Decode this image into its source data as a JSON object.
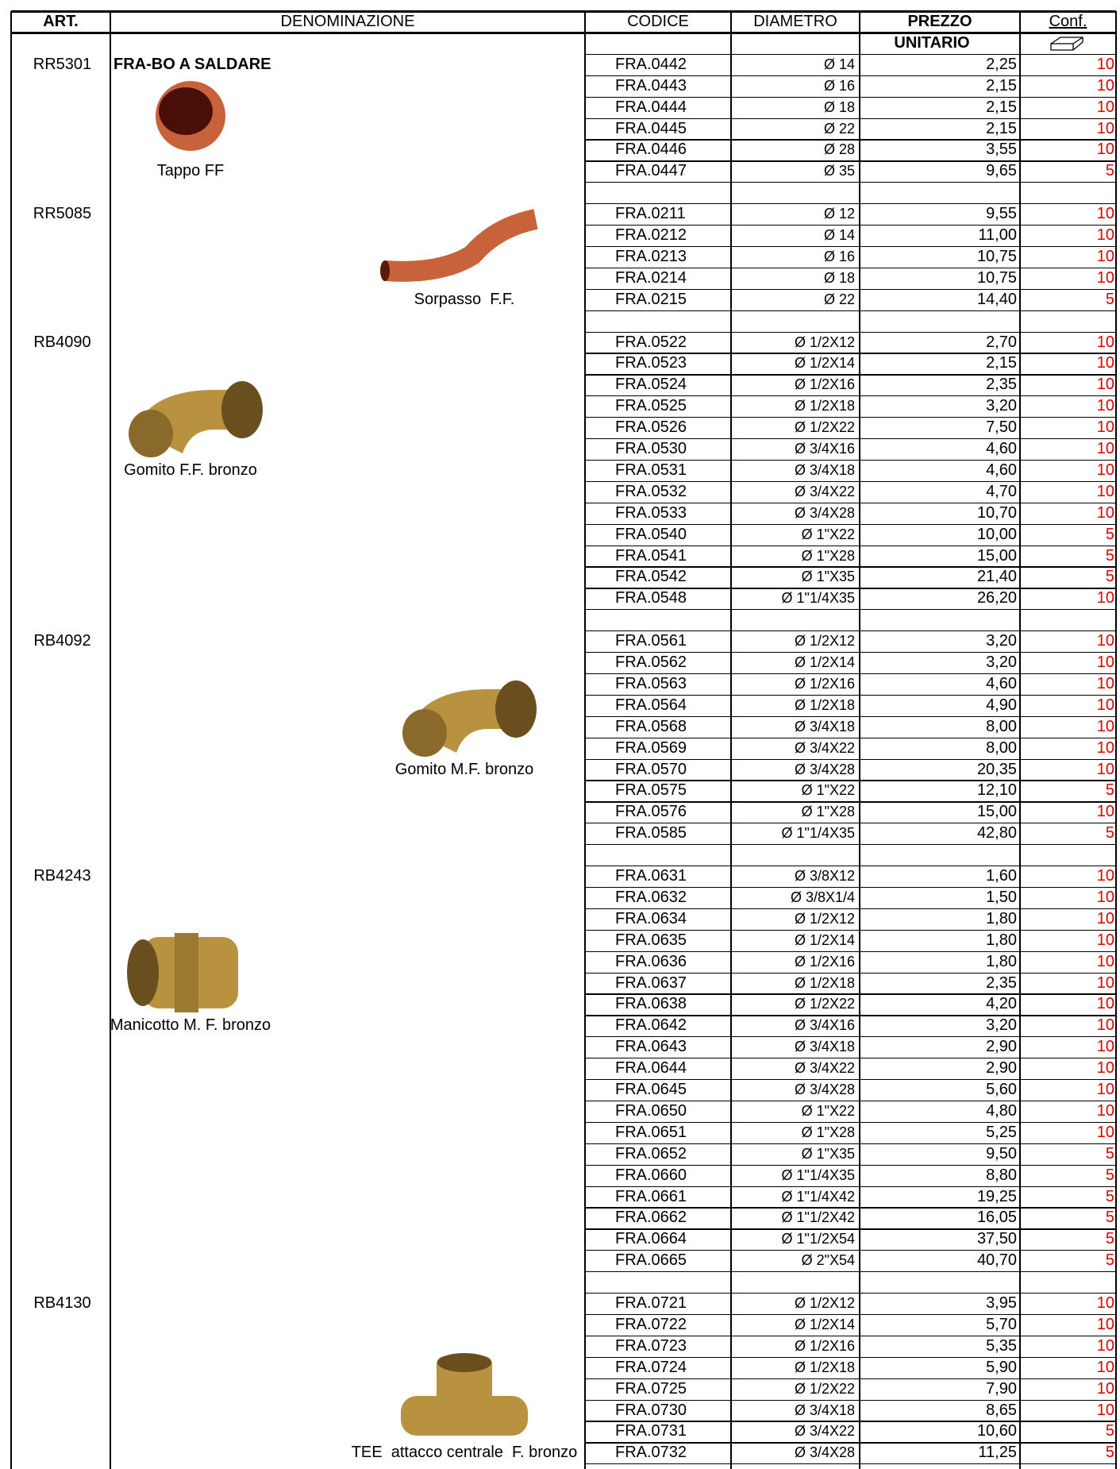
{
  "header": {
    "columns": [
      "ART.",
      "DENOMINAZIONE",
      "CODICE",
      "DIAMETRO",
      "PREZZO",
      "Conf."
    ],
    "subheader": "UNITARIO"
  },
  "groups": [
    {
      "art": "RR5301",
      "title": "FRA-BO A SALDARE",
      "caption": "Tappo FF",
      "rows": [
        [
          "FRA.0442",
          "Ø 14",
          "2,25",
          "10"
        ],
        [
          "FRA.0443",
          "Ø 16",
          "2,15",
          "10"
        ],
        [
          "FRA.0444",
          "Ø 18",
          "2,15",
          "10"
        ],
        [
          "FRA.0445",
          "Ø 22",
          "2,15",
          "10"
        ],
        [
          "FRA.0446",
          "Ø 28",
          "3,55",
          "10"
        ],
        [
          "FRA.0447",
          "Ø 35",
          "9,65",
          "5"
        ]
      ]
    },
    {
      "art": "RR5085",
      "caption": "Sorpasso  F.F.",
      "rows": [
        [
          "FRA.0211",
          "Ø 12",
          "9,55",
          "10"
        ],
        [
          "FRA.0212",
          "Ø 14",
          "11,00",
          "10"
        ],
        [
          "FRA.0213",
          "Ø 16",
          "10,75",
          "10"
        ],
        [
          "FRA.0214",
          "Ø 18",
          "10,75",
          "10"
        ],
        [
          "FRA.0215",
          "Ø 22",
          "14,40",
          "5"
        ]
      ]
    },
    {
      "art": "RB4090",
      "caption": "Gomito F.F. bronzo",
      "rows": [
        [
          "FRA.0522",
          "Ø 1/2X12",
          "2,70",
          "10"
        ],
        [
          "FRA.0523",
          "Ø 1/2X14",
          "2,15",
          "10"
        ],
        [
          "FRA.0524",
          "Ø 1/2X16",
          "2,35",
          "10"
        ],
        [
          "FRA.0525",
          "Ø 1/2X18",
          "3,20",
          "10"
        ],
        [
          "FRA.0526",
          "Ø 1/2X22",
          "7,50",
          "10"
        ],
        [
          "FRA.0530",
          "Ø 3/4X16",
          "4,60",
          "10"
        ],
        [
          "FRA.0531",
          "Ø 3/4X18",
          "4,60",
          "10"
        ],
        [
          "FRA.0532",
          "Ø 3/4X22",
          "4,70",
          "10"
        ],
        [
          "FRA.0533",
          "Ø 3/4X28",
          "10,70",
          "10"
        ],
        [
          "FRA.0540",
          "Ø 1\"X22",
          "10,00",
          "5"
        ],
        [
          "FRA.0541",
          "Ø 1\"X28",
          "15,00",
          "5"
        ],
        [
          "FRA.0542",
          "Ø 1\"X35",
          "21,40",
          "5"
        ],
        [
          "FRA.0548",
          "Ø 1\"1/4X35",
          "26,20",
          "10"
        ]
      ]
    },
    {
      "art": "RB4092",
      "caption": "Gomito M.F. bronzo",
      "rows": [
        [
          "FRA.0561",
          "Ø 1/2X12",
          "3,20",
          "10"
        ],
        [
          "FRA.0562",
          "Ø 1/2X14",
          "3,20",
          "10"
        ],
        [
          "FRA.0563",
          "Ø 1/2X16",
          "4,60",
          "10"
        ],
        [
          "FRA.0564",
          "Ø 1/2X18",
          "4,90",
          "10"
        ],
        [
          "FRA.0568",
          "Ø 3/4X18",
          "8,00",
          "10"
        ],
        [
          "FRA.0569",
          "Ø 3/4X22",
          "8,00",
          "10"
        ],
        [
          "FRA.0570",
          "Ø 3/4X28",
          "20,35",
          "10"
        ],
        [
          "FRA.0575",
          "Ø 1\"X22",
          "12,10",
          "5"
        ],
        [
          "FRA.0576",
          "Ø 1\"X28",
          "15,00",
          "10"
        ],
        [
          "FRA.0585",
          "Ø 1\"1/4X35",
          "42,80",
          "5"
        ]
      ]
    },
    {
      "art": "RB4243",
      "caption": "Manicotto M. F. bronzo",
      "rows": [
        [
          "FRA.0631",
          "Ø 3/8X12",
          "1,60",
          "10"
        ],
        [
          "FRA.0632",
          "Ø 3/8X1/4",
          "1,50",
          "10"
        ],
        [
          "FRA.0634",
          "Ø 1/2X12",
          "1,80",
          "10"
        ],
        [
          "FRA.0635",
          "Ø 1/2X14",
          "1,80",
          "10"
        ],
        [
          "FRA.0636",
          "Ø 1/2X16",
          "1,80",
          "10"
        ],
        [
          "FRA.0637",
          "Ø 1/2X18",
          "2,35",
          "10"
        ],
        [
          "FRA.0638",
          "Ø 1/2X22",
          "4,20",
          "10"
        ],
        [
          "FRA.0642",
          "Ø 3/4X16",
          "3,20",
          "10"
        ],
        [
          "FRA.0643",
          "Ø 3/4X18",
          "2,90",
          "10"
        ],
        [
          "FRA.0644",
          "Ø 3/4X22",
          "2,90",
          "10"
        ],
        [
          "FRA.0645",
          "Ø 3/4X28",
          "5,60",
          "10"
        ],
        [
          "FRA.0650",
          "Ø 1\"X22",
          "4,80",
          "10"
        ],
        [
          "FRA.0651",
          "Ø 1\"X28",
          "5,25",
          "10"
        ],
        [
          "FRA.0652",
          "Ø 1\"X35",
          "9,50",
          "5"
        ],
        [
          "FRA.0660",
          "Ø 1\"1/4X35",
          "8,80",
          "5"
        ],
        [
          "FRA.0661",
          "Ø 1\"1/4X42",
          "19,25",
          "5"
        ],
        [
          "FRA.0662",
          "Ø 1\"1/2X42",
          "16,05",
          "5"
        ],
        [
          "FRA.0664",
          "Ø 1\"1/2X54",
          "37,50",
          "5"
        ],
        [
          "FRA.0665",
          "Ø 2\"X54",
          "40,70",
          "5"
        ]
      ]
    },
    {
      "art": "RB4130",
      "caption": "TEE  attacco centrale  F. bronzo",
      "rows": [
        [
          "FRA.0721",
          "Ø 1/2X12",
          "3,95",
          "10"
        ],
        [
          "FRA.0722",
          "Ø 1/2X14",
          "5,70",
          "10"
        ],
        [
          "FRA.0723",
          "Ø 1/2X16",
          "5,35",
          "10"
        ],
        [
          "FRA.0724",
          "Ø 1/2X18",
          "5,90",
          "10"
        ],
        [
          "FRA.0725",
          "Ø 1/2X22",
          "7,90",
          "10"
        ],
        [
          "FRA.0730",
          "Ø 3/4X18",
          "8,65",
          "10"
        ],
        [
          "FRA.0731",
          "Ø 3/4X22",
          "10,60",
          "5"
        ],
        [
          "FRA.0732",
          "Ø 3/4X28",
          "11,25",
          "5"
        ]
      ]
    }
  ]
}
